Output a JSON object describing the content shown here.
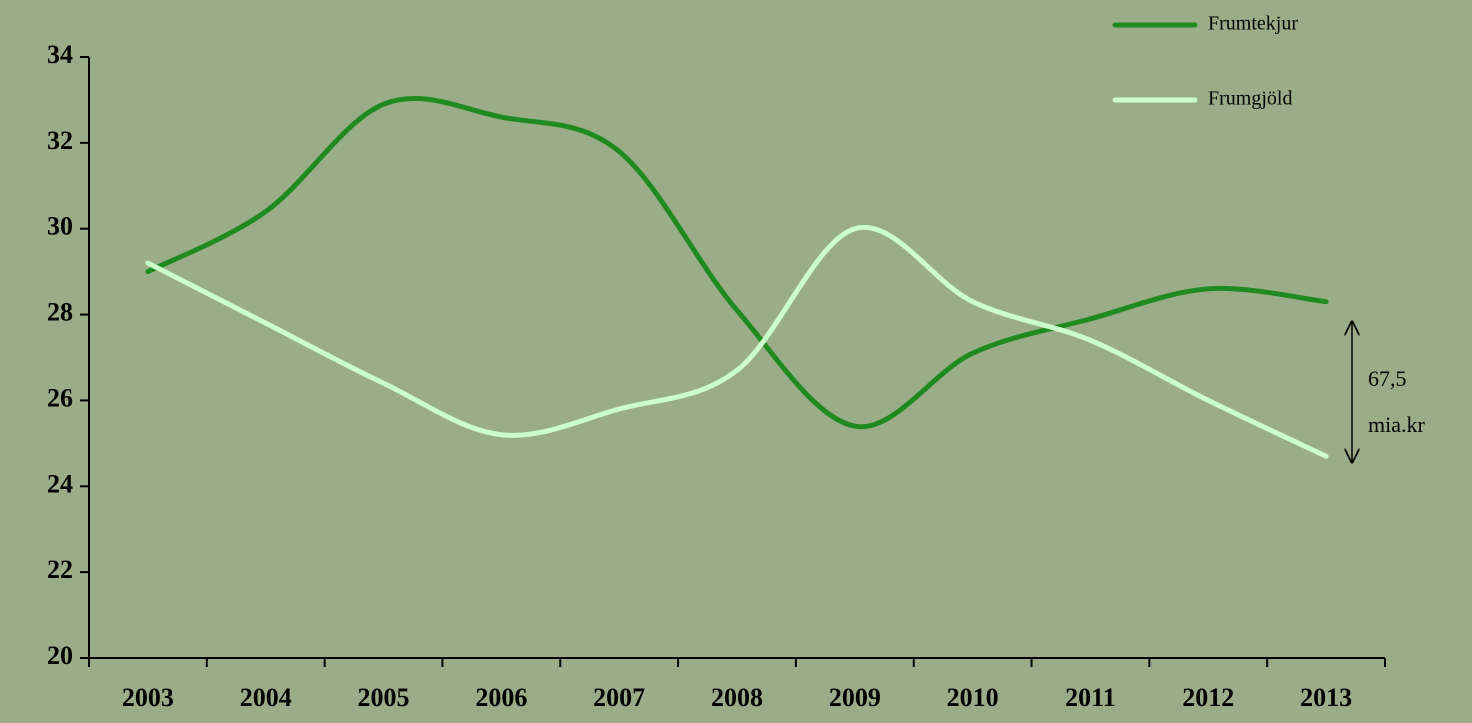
{
  "chart_data": {
    "type": "line",
    "categories": [
      "2003",
      "2004",
      "2005",
      "2006",
      "2007",
      "2008",
      "2009",
      "2010",
      "2011",
      "2012",
      "2013"
    ],
    "series": [
      {
        "name": "Frumtekjur",
        "color": "#1f8a1f",
        "values": [
          29.0,
          30.4,
          32.9,
          32.6,
          31.8,
          28.1,
          25.4,
          27.1,
          27.9,
          28.6,
          28.3
        ]
      },
      {
        "name": "Frumgjöld",
        "color": "#ccffcc",
        "values": [
          29.2,
          27.8,
          26.4,
          25.2,
          25.8,
          26.7,
          30.0,
          28.3,
          27.4,
          26.0,
          24.7
        ]
      }
    ],
    "ylim": [
      20,
      34
    ],
    "yticks": [
      20,
      22,
      24,
      26,
      28,
      30,
      32,
      34
    ],
    "annotation": [
      "67,5",
      "mia.kr"
    ],
    "background": "#9aad88",
    "smooth": true
  }
}
